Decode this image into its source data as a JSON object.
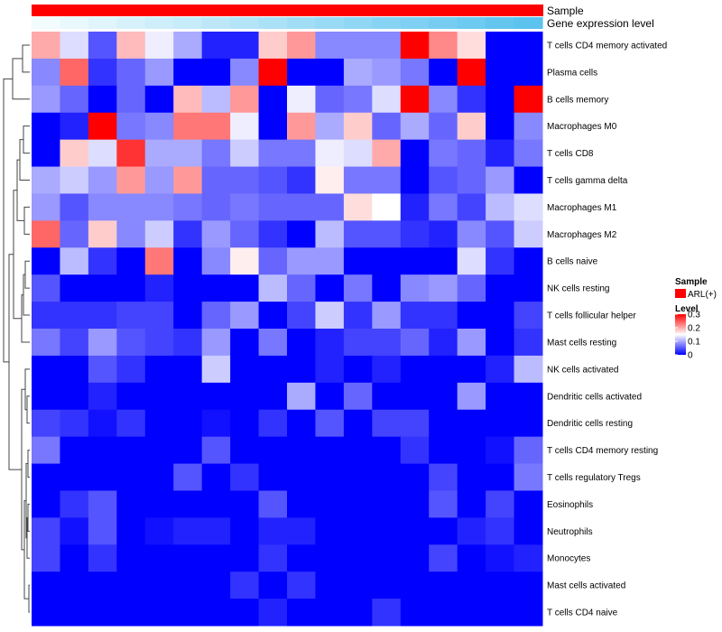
{
  "chart_data": {
    "type": "heatmap",
    "annotations": [
      {
        "name": "Sample",
        "description": "all columns belong to one sample group",
        "color": "#ff0000"
      },
      {
        "name": "Gene expression level",
        "description": "continuous gradient across columns",
        "color_low": "#f2fbfe",
        "color_high": "#5bc3ee"
      }
    ],
    "legend": {
      "position": "right",
      "sample_title": "Sample",
      "sample_label": "ARL(+)",
      "sample_color": "#ff0000",
      "level_title": "Level",
      "level_ticks": [
        "0.3",
        "0.2",
        "0.1",
        "0"
      ],
      "level_tick_values": [
        0.3,
        0.2,
        0.1,
        0
      ],
      "scale": {
        "min": 0,
        "max": 0.3,
        "colors": [
          "#0000ff",
          "#ffffff",
          "#ff0000"
        ]
      }
    },
    "columns": 18,
    "rows": [
      "T cells CD4 memory activated",
      "Plasma cells",
      "B cells memory",
      "Macrophages M0",
      "T cells CD8",
      "T cells gamma delta",
      "Macrophages M1",
      "Macrophages M2",
      "B cells naive",
      "NK cells resting",
      "T cells follicular helper",
      "Mast cells resting",
      "NK cells activated",
      "Dendritic cells activated",
      "Dendritic cells resting",
      "T cells CD4 memory resting",
      "T cells regulatory  Tregs",
      "Eosinophils",
      "Neutrophils",
      "Monocytes",
      "Mast cells activated",
      "T cells CD4 naive"
    ],
    "values": [
      [
        0.2,
        0.13,
        0.05,
        0.19,
        0.14,
        0.1,
        0.02,
        0.02,
        0.18,
        0.21,
        0.08,
        0.08,
        0.08,
        0.3,
        0.22,
        0.17,
        0.0,
        0.0
      ],
      [
        0.08,
        0.24,
        0.03,
        0.06,
        0.09,
        0.0,
        0.0,
        0.08,
        0.3,
        0.0,
        0.0,
        0.1,
        0.09,
        0.07,
        0.0,
        0.3,
        0.0,
        0.0
      ],
      [
        0.09,
        0.06,
        0.0,
        0.06,
        0.0,
        0.19,
        0.11,
        0.21,
        0.0,
        0.14,
        0.06,
        0.07,
        0.13,
        0.3,
        0.08,
        0.03,
        0.0,
        0.3
      ],
      [
        0.0,
        0.02,
        0.3,
        0.07,
        0.08,
        0.23,
        0.23,
        0.14,
        0.0,
        0.21,
        0.1,
        0.18,
        0.06,
        0.1,
        0.06,
        0.18,
        0.0,
        0.08
      ],
      [
        0.0,
        0.18,
        0.13,
        0.27,
        0.1,
        0.1,
        0.07,
        0.12,
        0.07,
        0.07,
        0.14,
        0.13,
        0.2,
        0.0,
        0.07,
        0.06,
        0.02,
        0.07
      ],
      [
        0.1,
        0.12,
        0.09,
        0.21,
        0.09,
        0.21,
        0.06,
        0.06,
        0.05,
        0.03,
        0.16,
        0.07,
        0.07,
        0.0,
        0.05,
        0.06,
        0.09,
        0.0
      ],
      [
        0.09,
        0.05,
        0.08,
        0.08,
        0.08,
        0.07,
        0.06,
        0.07,
        0.06,
        0.06,
        0.06,
        0.17,
        0.15,
        0.02,
        0.07,
        0.04,
        0.11,
        0.13
      ],
      [
        0.24,
        0.06,
        0.18,
        0.08,
        0.12,
        0.03,
        0.09,
        0.06,
        0.03,
        0.0,
        0.11,
        0.05,
        0.05,
        0.03,
        0.02,
        0.08,
        0.05,
        0.12
      ],
      [
        0.0,
        0.11,
        0.03,
        0.0,
        0.23,
        0.0,
        0.08,
        0.16,
        0.06,
        0.09,
        0.09,
        0.0,
        0.0,
        0.0,
        0.0,
        0.13,
        0.03,
        0.0
      ],
      [
        0.05,
        0.0,
        0.0,
        0.0,
        0.02,
        0.0,
        0.0,
        0.0,
        0.11,
        0.06,
        0.0,
        0.07,
        0.0,
        0.08,
        0.09,
        0.06,
        0.0,
        0.0
      ],
      [
        0.03,
        0.03,
        0.03,
        0.04,
        0.04,
        0.0,
        0.06,
        0.09,
        0.0,
        0.04,
        0.12,
        0.03,
        0.09,
        0.03,
        0.03,
        0.0,
        0.0,
        0.04
      ],
      [
        0.07,
        0.04,
        0.09,
        0.05,
        0.04,
        0.03,
        0.09,
        0.0,
        0.07,
        0.0,
        0.02,
        0.04,
        0.04,
        0.06,
        0.02,
        0.09,
        0.0,
        0.03
      ],
      [
        0.0,
        0.0,
        0.05,
        0.03,
        0.0,
        0.0,
        0.12,
        0.0,
        0.0,
        0.0,
        0.02,
        0.0,
        0.02,
        0.0,
        0.0,
        0.0,
        0.02,
        0.11
      ],
      [
        0.0,
        0.0,
        0.02,
        0.0,
        0.0,
        0.0,
        0.0,
        0.0,
        0.0,
        0.1,
        0.0,
        0.06,
        0.0,
        0.0,
        0.0,
        0.09,
        0.0,
        0.0
      ],
      [
        0.04,
        0.03,
        0.01,
        0.03,
        0.0,
        0.0,
        0.01,
        0.0,
        0.03,
        0.0,
        0.05,
        0.0,
        0.04,
        0.04,
        0.0,
        0.0,
        0.0,
        0.0
      ],
      [
        0.07,
        0.0,
        0.0,
        0.0,
        0.0,
        0.0,
        0.05,
        0.0,
        0.0,
        0.0,
        0.0,
        0.0,
        0.0,
        0.03,
        0.0,
        0.0,
        0.01,
        0.06
      ],
      [
        0.0,
        0.0,
        0.0,
        0.0,
        0.0,
        0.05,
        0.0,
        0.03,
        0.0,
        0.0,
        0.0,
        0.0,
        0.0,
        0.0,
        0.04,
        0.0,
        0.0,
        0.07
      ],
      [
        0.0,
        0.03,
        0.05,
        0.0,
        0.0,
        0.0,
        0.0,
        0.0,
        0.05,
        0.0,
        0.0,
        0.0,
        0.0,
        0.0,
        0.05,
        0.0,
        0.04,
        0.0
      ],
      [
        0.04,
        0.01,
        0.05,
        0.0,
        0.01,
        0.02,
        0.02,
        0.0,
        0.02,
        0.02,
        0.0,
        0.0,
        0.0,
        0.0,
        0.0,
        0.02,
        0.03,
        0.0
      ],
      [
        0.04,
        0.0,
        0.03,
        0.0,
        0.0,
        0.0,
        0.0,
        0.0,
        0.03,
        0.0,
        0.0,
        0.0,
        0.0,
        0.0,
        0.04,
        0.0,
        0.01,
        0.02
      ],
      [
        0.0,
        0.0,
        0.0,
        0.0,
        0.0,
        0.0,
        0.0,
        0.03,
        0.0,
        0.03,
        0.0,
        0.0,
        0.0,
        0.0,
        0.0,
        0.0,
        0.0,
        0.0
      ],
      [
        0.0,
        0.0,
        0.0,
        0.0,
        0.0,
        0.0,
        0.0,
        0.0,
        0.02,
        0.0,
        0.0,
        0.0,
        0.03,
        0.0,
        0.0,
        0.0,
        0.0,
        0.0
      ]
    ]
  }
}
